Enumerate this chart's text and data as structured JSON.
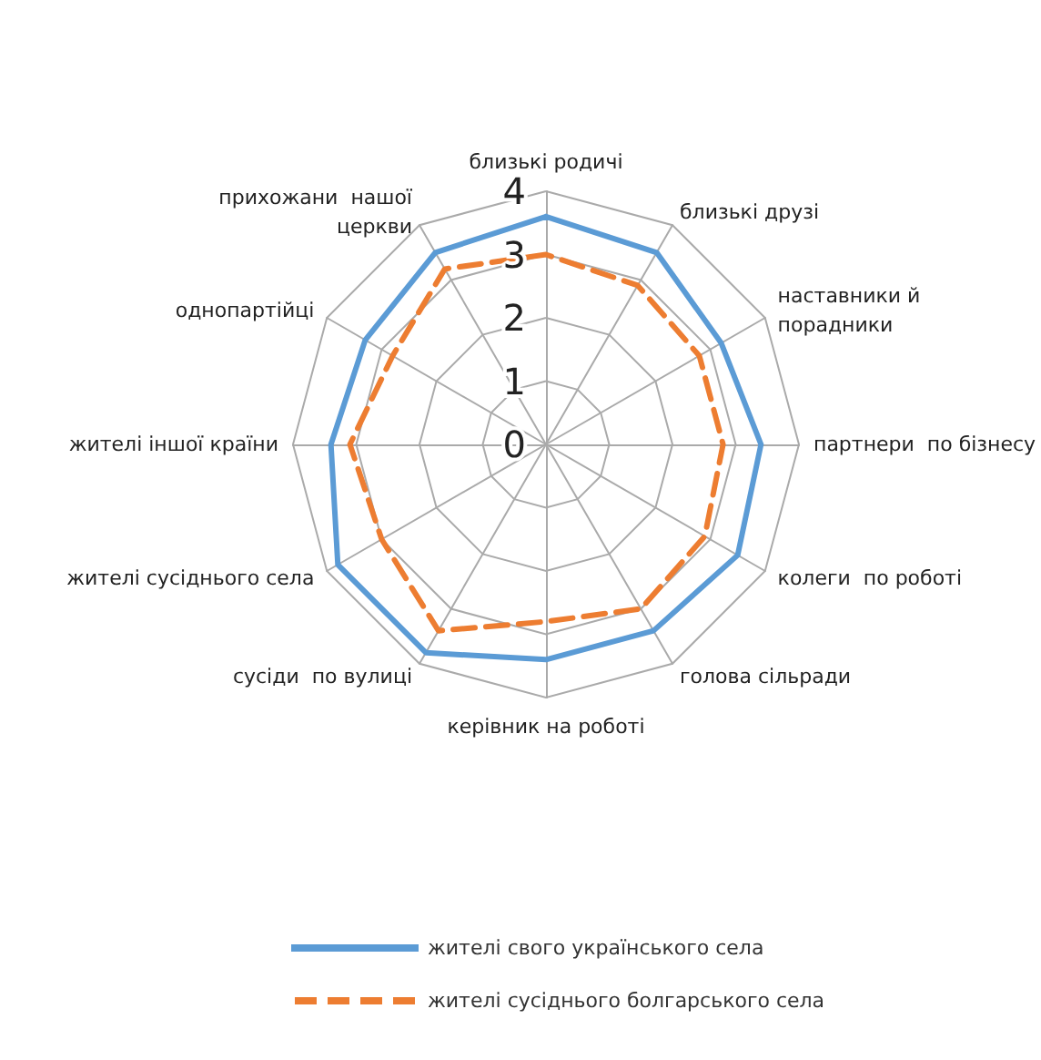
{
  "chart_data": {
    "type": "radar",
    "categories": [
      "близькі родичі",
      "близькі друзі",
      "наставники й\nпорадники",
      "партнери  по бізнесу",
      "колеги  по роботі",
      "голова сільради",
      "керівник на роботі",
      "сусіди  по вулиці",
      "жителі сусіднього села",
      "жителі іншої країни",
      "однопартійці",
      "прихожани  нашої\nцеркви"
    ],
    "series": [
      {
        "name": "жителі свого українського села",
        "color": "#5b9bd5",
        "line_style": "solid",
        "values": [
          3.6,
          3.5,
          3.2,
          3.4,
          3.5,
          3.4,
          3.4,
          3.8,
          3.8,
          3.4,
          3.3,
          3.5
        ]
      },
      {
        "name": "жителі сусіднього болгарського села",
        "color": "#ed7d31",
        "line_style": "dashed",
        "values": [
          3.0,
          2.9,
          2.8,
          2.8,
          2.9,
          3.0,
          2.8,
          3.4,
          3.0,
          3.1,
          2.8,
          3.2
        ]
      }
    ],
    "ylim": [
      0,
      4
    ],
    "yticks": [
      0,
      1,
      2,
      3,
      4
    ],
    "grid": true,
    "marker": "none",
    "legend": "bottom"
  }
}
